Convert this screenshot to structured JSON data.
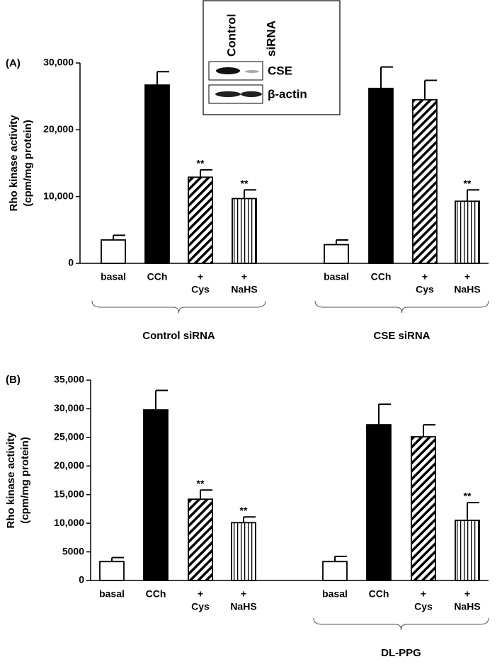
{
  "chart_data": [
    {
      "type": "bar",
      "panel_label": "(A)",
      "y_label": [
        "Rho kinase activity",
        "(cpm/mg protein)"
      ],
      "categories": [
        [
          "basal"
        ],
        [
          "CCh"
        ],
        [
          "+",
          "Cys"
        ],
        [
          "+",
          "NaHS"
        ],
        [
          "basal"
        ],
        [
          "CCh"
        ],
        [
          "+",
          "Cys"
        ],
        [
          "+",
          "NaHS"
        ]
      ],
      "values": [
        3500,
        26700,
        12900,
        9700,
        2800,
        26200,
        24500,
        9300
      ],
      "errors": [
        700,
        2000,
        1100,
        1300,
        700,
        3200,
        2900,
        1700
      ],
      "fills": [
        "white",
        "black",
        "diagonal",
        "vertical",
        "white",
        "black",
        "diagonal",
        "vertical"
      ],
      "significance": [
        null,
        null,
        "**",
        "**",
        null,
        null,
        null,
        "**"
      ],
      "groups": [
        {
          "label": "Control siRNA",
          "categories": [
            0,
            3
          ]
        },
        {
          "label": "CSE siRNA",
          "categories": [
            4,
            7
          ]
        }
      ],
      "ylim": [
        0,
        30000
      ],
      "yticks": [
        0,
        {
          "value": 10000,
          "label": "10,000"
        },
        {
          "value": 20000,
          "label": "20,000"
        },
        {
          "value": 30000,
          "label": "30,000"
        }
      ]
    },
    {
      "type": "bar",
      "panel_label": "(B)",
      "y_label": [
        "Rho kinase activity",
        "(cpm/mg protein)"
      ],
      "categories": [
        [
          "basal"
        ],
        [
          "CCh"
        ],
        [
          "+",
          "Cys"
        ],
        [
          "+",
          "NaHS"
        ],
        [
          "basal"
        ],
        [
          "CCh"
        ],
        [
          "+",
          "Cys"
        ],
        [
          "+",
          "NaHS"
        ]
      ],
      "values": [
        3300,
        29800,
        14200,
        10100,
        3300,
        27200,
        25100,
        10500
      ],
      "errors": [
        700,
        3400,
        1600,
        1000,
        900,
        3600,
        2100,
        3100
      ],
      "fills": [
        "white",
        "black",
        "diagonal",
        "vertical",
        "white",
        "black",
        "diagonal",
        "vertical"
      ],
      "significance": [
        null,
        null,
        "**",
        "**",
        null,
        null,
        null,
        "**"
      ],
      "groups": [
        {
          "label": "DL-PPG",
          "categories": [
            4,
            7
          ]
        }
      ],
      "ylim": [
        0,
        35000
      ],
      "yticks": [
        0,
        5000,
        {
          "value": 10000,
          "label": "10,000"
        },
        {
          "value": 15000,
          "label": "15,000"
        },
        {
          "value": 20000,
          "label": "20,000"
        },
        {
          "value": 25000,
          "label": "25,000"
        },
        {
          "value": 30000,
          "label": "30,000"
        },
        {
          "value": 35000,
          "label": "35,000"
        }
      ]
    }
  ],
  "inset": {
    "lanes": [
      "Control",
      "siRNA"
    ],
    "bands": [
      "CSE",
      "β-actin"
    ]
  }
}
